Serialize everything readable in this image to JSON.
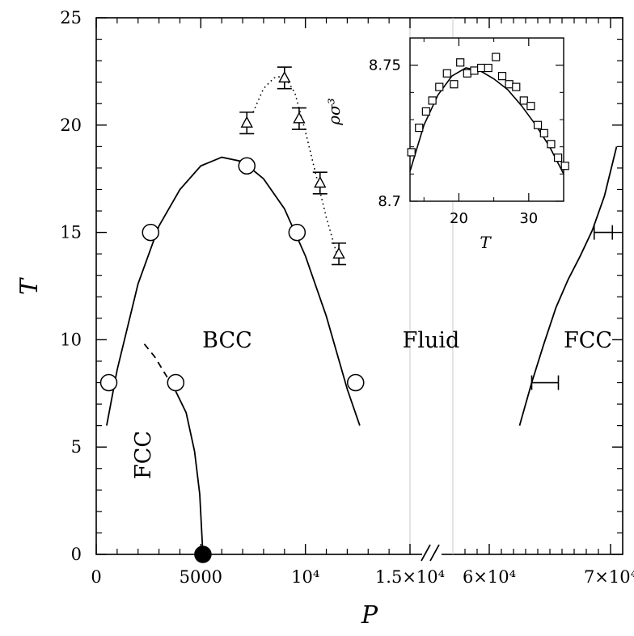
{
  "chart_data": [
    {
      "type": "scatter",
      "xlabel": "P",
      "ylabel": "T",
      "xlim_left": [
        0,
        15000
      ],
      "xlim_right": [
        57000,
        71000
      ],
      "ylim": [
        0,
        25
      ],
      "x_break": "//",
      "x_tick_labels": [
        "0",
        "5000",
        "10⁴",
        "1.5×10⁴",
        "6×10⁴",
        "7×10⁴"
      ],
      "y_tick_labels": [
        "0",
        "5",
        "10",
        "15",
        "20",
        "25"
      ],
      "phase_labels": [
        "BCC",
        "Fluid",
        "FCC",
        "FCC"
      ],
      "series": [
        {
          "marker": "open-circle",
          "points": [
            [
              600,
              8
            ],
            [
              2600,
              15
            ],
            [
              3800,
              8
            ],
            [
              7200,
              18.1
            ],
            [
              9600,
              15
            ],
            [
              12400,
              8
            ]
          ]
        },
        {
          "marker": "filled-circle",
          "points": [
            [
              5100,
              0
            ]
          ]
        },
        {
          "marker": "open-triangle",
          "error_bars": "vertical",
          "points": [
            {
              "x": 7200,
              "y": 20.1,
              "err": 0.5
            },
            {
              "x": 9000,
              "y": 22.2,
              "err": 0.5
            },
            {
              "x": 9700,
              "y": 20.3,
              "err": 0.5
            },
            {
              "x": 10700,
              "y": 17.3,
              "err": 0.5
            },
            {
              "x": 11600,
              "y": 14.0,
              "err": 0.5
            }
          ]
        },
        {
          "marker": "horizontal-error-bar",
          "points": [
            {
              "x": 64600,
              "y": 8,
              "err": 1100
            },
            {
              "x": 69400,
              "y": 15,
              "err": 750
            }
          ]
        },
        {
          "style": "solid-curve",
          "points": [
            [
              500,
              6
            ],
            [
              1000,
              8.6
            ],
            [
              2000,
              12.6
            ],
            [
              3000,
              15.3
            ],
            [
              4000,
              17.0
            ],
            [
              5000,
              18.1
            ],
            [
              6000,
              18.5
            ],
            [
              7000,
              18.3
            ],
            [
              8000,
              17.5
            ],
            [
              9000,
              16.1
            ],
            [
              10000,
              13.9
            ],
            [
              11000,
              11.1
            ],
            [
              12000,
              7.7
            ],
            [
              12600,
              6
            ]
          ]
        },
        {
          "style": "dashed-curve",
          "points": [
            [
              2300,
              9.8
            ],
            [
              2800,
              9.2
            ],
            [
              3300,
              8.4
            ],
            [
              3800,
              7.6
            ]
          ]
        },
        {
          "style": "solid-curve",
          "points": [
            [
              3800,
              7.6
            ],
            [
              4300,
              6.6
            ],
            [
              4700,
              4.8
            ],
            [
              4950,
              2.8
            ],
            [
              5100,
              0
            ]
          ]
        },
        {
          "style": "dotted-curve",
          "points": [
            [
              7500,
              20.6
            ],
            [
              8000,
              21.7
            ],
            [
              8500,
              22.2
            ],
            [
              9000,
              22.3
            ],
            [
              9500,
              21.5
            ],
            [
              10000,
              19.7
            ],
            [
              10500,
              17.7
            ],
            [
              11000,
              15.7
            ],
            [
              11500,
              14.0
            ]
          ]
        },
        {
          "style": "solid-curve",
          "points": [
            [
              62500,
              6
            ],
            [
              63500,
              8.0
            ],
            [
              64500,
              9.8
            ],
            [
              65500,
              11.5
            ],
            [
              66500,
              12.8
            ],
            [
              67500,
              13.9
            ],
            [
              68500,
              15.1
            ],
            [
              69500,
              16.7
            ],
            [
              70500,
              19.0
            ]
          ]
        }
      ]
    },
    {
      "type": "scatter",
      "inset": true,
      "xlabel": "T",
      "ylabel": "ρσ³",
      "xlim": [
        13,
        35
      ],
      "ylim": [
        8.7,
        8.76
      ],
      "x_tick_labels": [
        "20",
        "30"
      ],
      "y_tick_labels": [
        "8.75",
        "8.7"
      ],
      "series": [
        {
          "marker": "open-square",
          "points": [
            [
              13.2,
              8.718
            ],
            [
              14.3,
              8.727
            ],
            [
              15.3,
              8.733
            ],
            [
              16.2,
              8.737
            ],
            [
              17.2,
              8.742
            ],
            [
              18.3,
              8.747
            ],
            [
              19.3,
              8.743
            ],
            [
              20.2,
              8.751
            ],
            [
              21.2,
              8.747
            ],
            [
              22.2,
              8.748
            ],
            [
              23.2,
              8.749
            ],
            [
              24.2,
              8.749
            ],
            [
              25.3,
              8.753
            ],
            [
              26.2,
              8.746
            ],
            [
              27.2,
              8.743
            ],
            [
              28.2,
              8.742
            ],
            [
              29.3,
              8.737
            ],
            [
              30.3,
              8.735
            ],
            [
              31.3,
              8.728
            ],
            [
              32.2,
              8.725
            ],
            [
              33.2,
              8.721
            ],
            [
              34.2,
              8.716
            ],
            [
              35.2,
              8.713
            ]
          ]
        },
        {
          "style": "solid-curve",
          "points": [
            [
              13,
              8.711
            ],
            [
              15,
              8.728
            ],
            [
              17,
              8.739
            ],
            [
              19,
              8.746
            ],
            [
              21,
              8.749
            ],
            [
              23,
              8.748
            ],
            [
              25,
              8.745
            ],
            [
              27,
              8.741
            ],
            [
              29,
              8.735
            ],
            [
              31,
              8.728
            ],
            [
              33,
              8.72
            ],
            [
              35,
              8.71
            ]
          ]
        }
      ]
    }
  ]
}
